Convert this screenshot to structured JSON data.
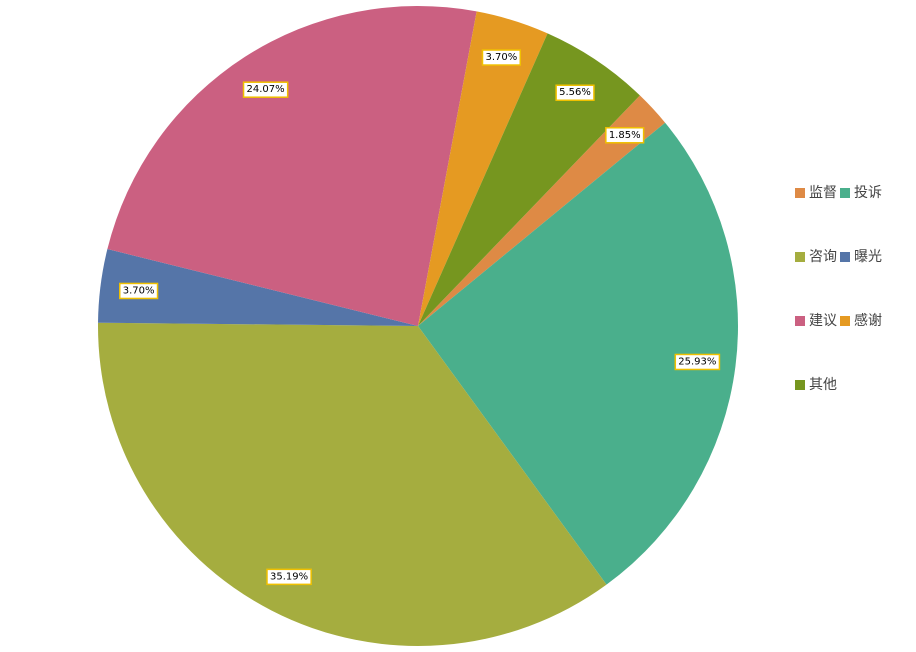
{
  "chart_data": {
    "type": "pie",
    "categories": [
      "监督",
      "投诉",
      "咨询",
      "曝光",
      "建议",
      "感谢",
      "其他"
    ],
    "values": [
      1.85,
      25.93,
      35.19,
      3.7,
      24.07,
      3.7,
      5.56
    ],
    "value_labels": [
      "1.85%",
      "25.93%",
      "35.19%",
      "3.70%",
      "24.07%",
      "3.70%",
      "5.56%"
    ],
    "colors": [
      "#de8a45",
      "#4aaf8c",
      "#a5ad3f",
      "#5575a8",
      "#cb6081",
      "#e59a22",
      "#76961f"
    ],
    "legend": "right"
  }
}
